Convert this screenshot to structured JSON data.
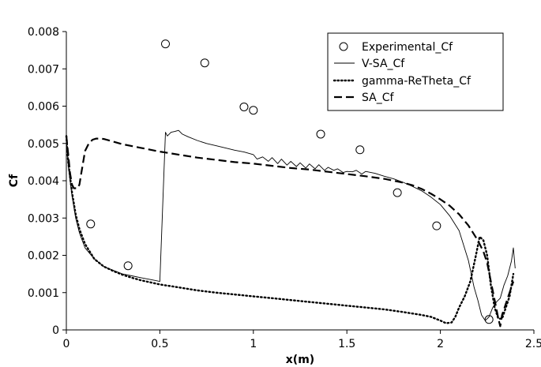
{
  "chart_data": {
    "type": "line",
    "title": "",
    "xlabel": "x(m)",
    "ylabel": "Cf",
    "xlim": [
      0,
      2.5
    ],
    "ylim": [
      0,
      0.008
    ],
    "grid": false,
    "legend_position": "top-right",
    "x_ticks": [
      {
        "value": 0,
        "label": "0"
      },
      {
        "value": 0.5,
        "label": "0.5"
      },
      {
        "value": 1,
        "label": "1"
      },
      {
        "value": 1.5,
        "label": "1.5"
      },
      {
        "value": 2,
        "label": "2"
      },
      {
        "value": 2.5,
        "label": "2.5"
      }
    ],
    "y_ticks": [
      {
        "value": 0,
        "label": "0"
      },
      {
        "value": 0.001,
        "label": "0.001"
      },
      {
        "value": 0.002,
        "label": "0.002"
      },
      {
        "value": 0.003,
        "label": "0.003"
      },
      {
        "value": 0.004,
        "label": "0.004"
      },
      {
        "value": 0.005,
        "label": "0.005"
      },
      {
        "value": 0.006,
        "label": "0.006"
      },
      {
        "value": 0.007,
        "label": "0.007"
      },
      {
        "value": 0.008,
        "label": "0.008"
      }
    ],
    "series": [
      {
        "name": "Experimental_Cf",
        "kind": "markers",
        "color": "#000000",
        "x": [
          0.13,
          0.33,
          0.53,
          0.74,
          0.95,
          1.0,
          1.36,
          1.57,
          1.77,
          1.98,
          2.26
        ],
        "y": [
          0.00284,
          0.00172,
          0.00767,
          0.00716,
          0.00598,
          0.00589,
          0.00525,
          0.00483,
          0.00368,
          0.00279,
          0.00028
        ]
      },
      {
        "name": "V-SA_Cf",
        "kind": "line",
        "dash": "solid",
        "width": 0.9,
        "color": "#000000",
        "x": [
          0.0,
          0.01,
          0.03,
          0.05,
          0.07,
          0.1,
          0.15,
          0.2,
          0.25,
          0.3,
          0.35,
          0.4,
          0.45,
          0.5,
          0.53,
          0.54,
          0.56,
          0.58,
          0.6,
          0.62,
          0.65,
          0.7,
          0.75,
          0.8,
          0.85,
          0.9,
          0.95,
          1.0,
          1.02,
          1.05,
          1.08,
          1.1,
          1.13,
          1.15,
          1.18,
          1.2,
          1.23,
          1.25,
          1.28,
          1.3,
          1.33,
          1.35,
          1.38,
          1.4,
          1.43,
          1.45,
          1.48,
          1.5,
          1.53,
          1.55,
          1.58,
          1.6,
          1.65,
          1.7,
          1.75,
          1.8,
          1.85,
          1.9,
          1.95,
          2.0,
          2.05,
          2.1,
          2.15,
          2.18,
          2.2,
          2.22,
          2.24,
          2.26,
          2.28,
          2.3,
          2.32,
          2.34,
          2.36,
          2.38,
          2.39,
          2.4
        ],
        "y": [
          0.0052,
          0.0044,
          0.0036,
          0.003,
          0.0026,
          0.0022,
          0.0019,
          0.0017,
          0.0016,
          0.0015,
          0.00145,
          0.0014,
          0.00135,
          0.0013,
          0.0053,
          0.0052,
          0.0053,
          0.00532,
          0.00535,
          0.00525,
          0.00518,
          0.00508,
          0.005,
          0.00494,
          0.00488,
          0.00482,
          0.00477,
          0.0047,
          0.00458,
          0.00464,
          0.00452,
          0.00462,
          0.00446,
          0.00458,
          0.00442,
          0.00452,
          0.00438,
          0.00448,
          0.00434,
          0.00445,
          0.00432,
          0.00443,
          0.00428,
          0.00436,
          0.00428,
          0.00432,
          0.00422,
          0.00425,
          0.00424,
          0.00428,
          0.00418,
          0.00425,
          0.0042,
          0.00412,
          0.00405,
          0.00396,
          0.00385,
          0.00373,
          0.00356,
          0.00336,
          0.00306,
          0.00266,
          0.00186,
          0.00115,
          0.0008,
          0.0004,
          0.00025,
          0.00035,
          0.0006,
          0.00075,
          0.00085,
          0.0012,
          0.00145,
          0.00185,
          0.0022,
          0.00165
        ]
      },
      {
        "name": "gamma-ReTheta_Cf",
        "kind": "line",
        "dash": "dotted",
        "width": 2.4,
        "color": "#000000",
        "x": [
          0.0,
          0.01,
          0.03,
          0.05,
          0.07,
          0.1,
          0.15,
          0.2,
          0.25,
          0.3,
          0.35,
          0.4,
          0.5,
          0.6,
          0.7,
          0.8,
          0.9,
          1.0,
          1.1,
          1.2,
          1.3,
          1.4,
          1.5,
          1.6,
          1.7,
          1.8,
          1.9,
          1.95,
          2.0,
          2.03,
          2.06,
          2.08,
          2.1,
          2.13,
          2.16,
          2.19,
          2.21,
          2.23,
          2.25,
          2.27,
          2.29,
          2.31,
          2.33,
          2.35,
          2.37,
          2.39
        ],
        "y": [
          0.0052,
          0.0045,
          0.0037,
          0.0031,
          0.0027,
          0.0023,
          0.0019,
          0.0017,
          0.00158,
          0.00148,
          0.0014,
          0.00133,
          0.00122,
          0.00114,
          0.00106,
          0.001,
          0.00095,
          0.0009,
          0.00085,
          0.0008,
          0.00075,
          0.0007,
          0.00065,
          0.0006,
          0.00055,
          0.00048,
          0.0004,
          0.00035,
          0.00025,
          0.00018,
          0.0002,
          0.00035,
          0.0006,
          0.0009,
          0.0013,
          0.002,
          0.0025,
          0.0024,
          0.002,
          0.0012,
          0.0006,
          0.0003,
          0.0003,
          0.0006,
          0.0009,
          0.0015
        ]
      },
      {
        "name": "SA_Cf",
        "kind": "line",
        "dash": "dashed",
        "width": 2.2,
        "color": "#000000",
        "x": [
          0.0,
          0.01,
          0.02,
          0.03,
          0.04,
          0.05,
          0.06,
          0.07,
          0.08,
          0.09,
          0.1,
          0.12,
          0.14,
          0.16,
          0.18,
          0.2,
          0.25,
          0.3,
          0.4,
          0.5,
          0.6,
          0.7,
          0.8,
          0.9,
          1.0,
          1.1,
          1.2,
          1.3,
          1.4,
          1.5,
          1.6,
          1.7,
          1.8,
          1.85,
          1.9,
          1.95,
          2.0,
          2.05,
          2.1,
          2.15,
          2.2,
          2.23,
          2.25,
          2.27,
          2.29,
          2.31,
          2.32,
          2.33,
          2.35,
          2.37,
          2.39
        ],
        "y": [
          0.0052,
          0.0047,
          0.0042,
          0.0039,
          0.0038,
          0.0038,
          0.0038,
          0.0039,
          0.0042,
          0.0045,
          0.0048,
          0.005,
          0.0051,
          0.00513,
          0.00513,
          0.00512,
          0.00505,
          0.00498,
          0.00488,
          0.00478,
          0.0047,
          0.00462,
          0.00456,
          0.0045,
          0.00446,
          0.0044,
          0.00434,
          0.0043,
          0.00424,
          0.00418,
          0.00412,
          0.00405,
          0.00395,
          0.00388,
          0.00378,
          0.00365,
          0.0035,
          0.00333,
          0.0031,
          0.0028,
          0.0024,
          0.0021,
          0.0018,
          0.0013,
          0.0008,
          0.0003,
          0.0001,
          0.0004,
          0.0007,
          0.001,
          0.0013
        ]
      }
    ]
  }
}
